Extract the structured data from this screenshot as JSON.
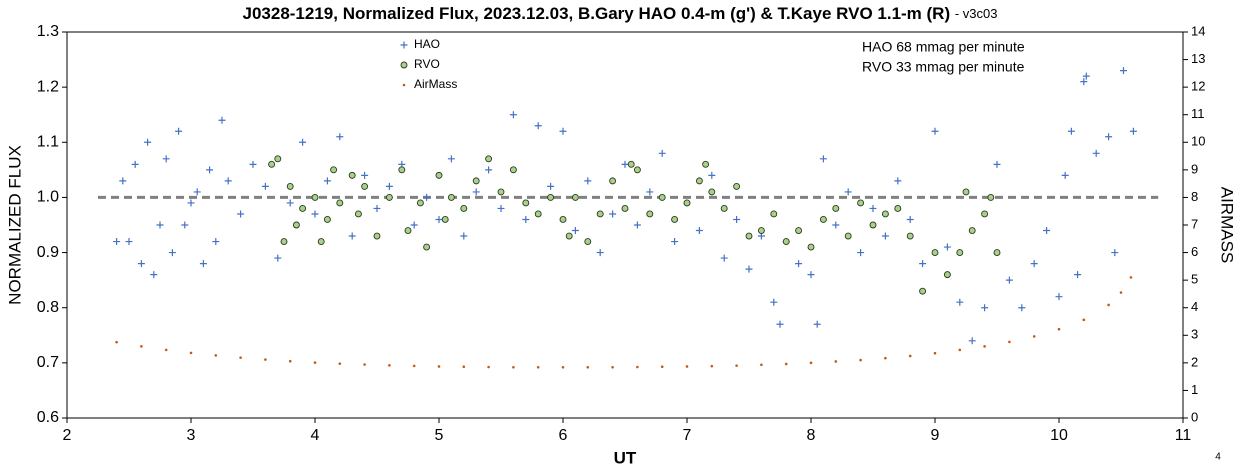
{
  "chart_data": {
    "type": "scatter",
    "title": "J0328-1219, Normalized Flux, 2023.12.03, B.Gary HAO 0.4-m (g') & T.Kaye RVO 1.1-m (R)",
    "version": "- v3c03",
    "xlabel": "UT",
    "ylabel": "NORMALIZED FLUX",
    "y2label": "AIRMASS",
    "annotations": [
      "HAO 68 mmag per minute",
      "RVO 33 mmag per minute"
    ],
    "page_number": "4",
    "reference_line": {
      "y": 1.0,
      "x": [
        2.25,
        10.8
      ],
      "color": "#808080"
    },
    "xlim": [
      2,
      11
    ],
    "xticks": [
      2,
      3,
      4,
      5,
      6,
      7,
      8,
      9,
      10,
      11
    ],
    "ylim": [
      0.6,
      1.3
    ],
    "yticks": [
      0.6,
      0.7,
      0.8,
      0.9,
      {
        "value": 1.0,
        "label": "1.0"
      },
      1.1,
      1.2,
      1.3
    ],
    "y2lim": [
      0,
      14
    ],
    "y2ticks": [
      0,
      1,
      2,
      3,
      4,
      5,
      6,
      7,
      8,
      9,
      10,
      11,
      12,
      13,
      14
    ],
    "legend": "top-left",
    "series": [
      {
        "name": "HAO",
        "color": "#4472c4",
        "marker": "plus",
        "x": [
          2.4,
          2.45,
          2.5,
          2.55,
          2.6,
          2.65,
          2.7,
          2.75,
          2.8,
          2.85,
          2.9,
          2.95,
          3.0,
          3.05,
          3.1,
          3.15,
          3.2,
          3.25,
          3.3,
          3.4,
          3.5,
          3.6,
          3.7,
          3.8,
          3.9,
          4.0,
          4.1,
          4.2,
          4.3,
          4.4,
          4.5,
          4.6,
          4.7,
          4.8,
          4.9,
          5.0,
          5.1,
          5.2,
          5.3,
          5.4,
          5.5,
          5.6,
          5.7,
          5.8,
          5.9,
          6.0,
          6.1,
          6.2,
          6.3,
          6.4,
          6.5,
          6.6,
          6.7,
          6.8,
          6.9,
          7.0,
          7.1,
          7.2,
          7.3,
          7.4,
          7.5,
          7.6,
          7.7,
          7.75,
          7.8,
          7.9,
          8.0,
          8.05,
          8.1,
          8.2,
          8.3,
          8.4,
          8.5,
          8.6,
          8.7,
          8.8,
          8.9,
          9.0,
          9.1,
          9.2,
          9.3,
          9.4,
          9.5,
          9.6,
          9.7,
          9.8,
          9.9,
          10.0,
          10.05,
          10.1,
          10.15,
          10.2,
          10.22,
          10.3,
          10.4,
          10.45,
          10.52,
          10.6
        ],
        "values": [
          0.92,
          1.03,
          0.92,
          1.06,
          0.88,
          1.1,
          0.86,
          0.95,
          1.07,
          0.9,
          1.12,
          0.95,
          0.99,
          1.01,
          0.88,
          1.05,
          0.92,
          1.14,
          1.03,
          0.97,
          1.06,
          1.02,
          0.89,
          0.99,
          1.1,
          0.97,
          1.03,
          1.11,
          0.93,
          1.04,
          0.98,
          1.02,
          1.06,
          0.95,
          1.0,
          0.96,
          1.07,
          0.93,
          1.01,
          1.05,
          0.98,
          1.15,
          0.96,
          1.13,
          1.02,
          1.12,
          0.94,
          1.03,
          0.9,
          0.97,
          1.06,
          0.95,
          1.01,
          1.08,
          0.92,
          0.99,
          0.94,
          1.04,
          0.89,
          0.96,
          0.87,
          0.93,
          0.81,
          0.77,
          0.92,
          0.88,
          0.86,
          0.77,
          1.07,
          0.95,
          1.01,
          0.9,
          0.98,
          0.93,
          1.03,
          0.96,
          0.88,
          1.12,
          0.91,
          0.81,
          0.74,
          0.8,
          1.06,
          0.85,
          0.8,
          0.88,
          0.94,
          0.82,
          1.04,
          1.12,
          0.86,
          1.21,
          1.22,
          1.08,
          1.11,
          0.9,
          1.23,
          1.12
        ]
      },
      {
        "name": "RVO",
        "color": "#a9d18e",
        "marker": "circle",
        "x": [
          3.65,
          3.7,
          3.75,
          3.8,
          3.85,
          3.9,
          4.0,
          4.05,
          4.1,
          4.15,
          4.2,
          4.3,
          4.35,
          4.4,
          4.5,
          4.6,
          4.7,
          4.75,
          4.85,
          4.9,
          5.0,
          5.05,
          5.1,
          5.2,
          5.3,
          5.4,
          5.5,
          5.6,
          5.7,
          5.8,
          5.9,
          6.0,
          6.05,
          6.1,
          6.2,
          6.3,
          6.4,
          6.5,
          6.55,
          6.6,
          6.7,
          6.8,
          6.9,
          7.0,
          7.1,
          7.15,
          7.2,
          7.3,
          7.4,
          7.5,
          7.6,
          7.7,
          7.8,
          7.9,
          8.0,
          8.1,
          8.2,
          8.3,
          8.4,
          8.5,
          8.6,
          8.7,
          8.8,
          8.9,
          9.0,
          9.1,
          9.2,
          9.25,
          9.3,
          9.4,
          9.45,
          9.5
        ],
        "values": [
          1.06,
          1.07,
          0.92,
          1.02,
          0.95,
          0.98,
          1.0,
          0.92,
          0.96,
          1.05,
          0.99,
          1.04,
          0.97,
          1.02,
          0.93,
          1.0,
          1.05,
          0.94,
          0.99,
          0.91,
          1.04,
          0.96,
          1.0,
          0.98,
          1.03,
          1.07,
          1.01,
          1.05,
          0.99,
          0.97,
          1.0,
          0.96,
          0.93,
          1.0,
          0.92,
          0.97,
          1.03,
          0.98,
          1.06,
          1.05,
          0.97,
          1.0,
          0.96,
          0.99,
          1.03,
          1.06,
          1.01,
          0.98,
          1.02,
          0.93,
          0.94,
          0.97,
          0.92,
          0.94,
          0.91,
          0.96,
          0.98,
          0.93,
          0.99,
          0.95,
          0.97,
          0.98,
          0.93,
          0.83,
          0.9,
          0.86,
          0.9,
          1.01,
          0.94,
          0.97,
          1.0,
          0.9
        ]
      },
      {
        "name": "AirMass",
        "color": "#c55a11",
        "marker": "dot",
        "axis": "y2",
        "x": [
          2.4,
          2.6,
          2.8,
          3.0,
          3.2,
          3.4,
          3.6,
          3.8,
          4.0,
          4.2,
          4.4,
          4.6,
          4.8,
          5.0,
          5.2,
          5.4,
          5.6,
          5.8,
          6.0,
          6.2,
          6.4,
          6.6,
          6.8,
          7.0,
          7.2,
          7.4,
          7.6,
          7.8,
          8.0,
          8.2,
          8.4,
          8.6,
          8.8,
          9.0,
          9.2,
          9.4,
          9.6,
          9.8,
          10.0,
          10.2,
          10.4,
          10.5,
          10.58
        ],
        "values": [
          2.75,
          2.6,
          2.47,
          2.36,
          2.27,
          2.19,
          2.12,
          2.06,
          2.01,
          1.97,
          1.94,
          1.91,
          1.89,
          1.87,
          1.86,
          1.85,
          1.84,
          1.84,
          1.84,
          1.84,
          1.84,
          1.85,
          1.86,
          1.87,
          1.88,
          1.9,
          1.93,
          1.96,
          2.0,
          2.05,
          2.1,
          2.17,
          2.25,
          2.35,
          2.47,
          2.6,
          2.76,
          2.96,
          3.22,
          3.56,
          4.1,
          4.55,
          5.1
        ]
      }
    ]
  }
}
